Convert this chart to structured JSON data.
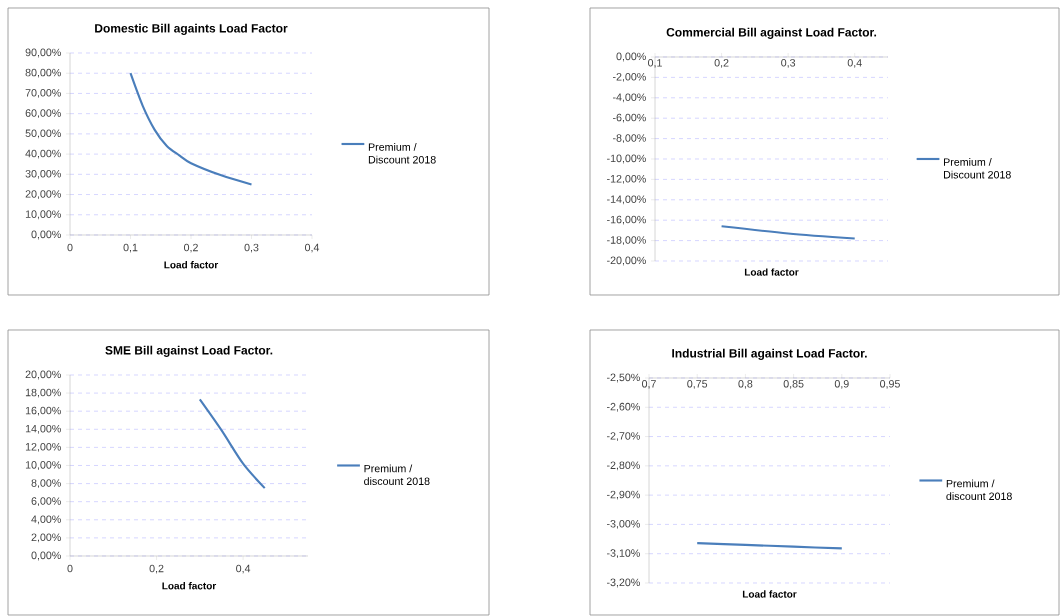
{
  "chart_data": [
    {
      "type": "line",
      "title": "Domestic Bill againts Load Factor",
      "xlabel": "Load factor",
      "grid": "y",
      "legend": "right",
      "marker": "none",
      "line_style": "solid",
      "xlim": [
        0,
        0.4
      ],
      "xticks": [
        0,
        {
          "value": 0.1,
          "label": "0,1"
        },
        {
          "value": 0.2,
          "label": "0,2"
        },
        {
          "value": 0.3,
          "label": "0,3"
        },
        {
          "value": 0.4,
          "label": "0,4"
        }
      ],
      "ylim": [
        0,
        90
      ],
      "yticks": [
        {
          "value": 0,
          "label": "0,00%"
        },
        {
          "value": 10,
          "label": "10,00%"
        },
        {
          "value": 20,
          "label": "20,00%"
        },
        {
          "value": 30,
          "label": "30,00%"
        },
        {
          "value": 40,
          "label": "40,00%"
        },
        {
          "value": 50,
          "label": "50,00%"
        },
        {
          "value": 60,
          "label": "60,00%"
        },
        {
          "value": 70,
          "label": "70,00%"
        },
        {
          "value": 80,
          "label": "80,00%"
        },
        {
          "value": 90,
          "label": "90,00%"
        }
      ],
      "x": [
        0.1,
        0.12,
        0.14,
        0.16,
        0.18,
        0.2,
        0.25,
        0.3
      ],
      "series": [
        {
          "name": "Premium / Discount 2018",
          "color": "#4a7ebb",
          "values": [
            80,
            64,
            52,
            44,
            39.5,
            35.5,
            29.5,
            25
          ]
        }
      ]
    },
    {
      "type": "line",
      "title": "Commercial Bill against Load Factor.",
      "xlabel": "Load factor",
      "grid": "y",
      "legend": "right",
      "marker": "none",
      "line_style": "solid",
      "xlim": [
        0.1,
        0.45
      ],
      "xticks": [
        {
          "value": 0.1,
          "label": "0,1"
        },
        {
          "value": 0.2,
          "label": "0,2"
        },
        {
          "value": 0.3,
          "label": "0,3"
        },
        {
          "value": 0.4,
          "label": "0,4"
        }
      ],
      "ylim": [
        -20,
        0
      ],
      "yticks": [
        {
          "value": 0,
          "label": "0,00%"
        },
        {
          "value": -2,
          "label": "-2,00%"
        },
        {
          "value": -4,
          "label": "-4,00%"
        },
        {
          "value": -6,
          "label": "-6,00%"
        },
        {
          "value": -8,
          "label": "-8,00%"
        },
        {
          "value": -10,
          "label": "-10,00%"
        },
        {
          "value": -12,
          "label": "-12,00%"
        },
        {
          "value": -14,
          "label": "-14,00%"
        },
        {
          "value": -16,
          "label": "-16,00%"
        },
        {
          "value": -18,
          "label": "-18,00%"
        },
        {
          "value": -20,
          "label": "-20,00%"
        }
      ],
      "x": [
        0.2,
        0.3,
        0.4
      ],
      "series": [
        {
          "name": "Premium / Discount 2018",
          "color": "#4a7ebb",
          "values": [
            -16.6,
            -17.3,
            -17.8
          ]
        }
      ]
    },
    {
      "type": "line",
      "title": "SME Bill against Load Factor.",
      "xlabel": "Load factor",
      "grid": "y",
      "legend": "right",
      "marker": "none",
      "line_style": "solid",
      "xlim": [
        0,
        0.55
      ],
      "xticks": [
        0,
        {
          "value": 0.2,
          "label": "0,2"
        },
        {
          "value": 0.4,
          "label": "0,4"
        }
      ],
      "ylim": [
        0,
        20
      ],
      "yticks": [
        {
          "value": 0,
          "label": "0,00%"
        },
        {
          "value": 2,
          "label": "2,00%"
        },
        {
          "value": 4,
          "label": "4,00%"
        },
        {
          "value": 6,
          "label": "6,00%"
        },
        {
          "value": 8,
          "label": "8,00%"
        },
        {
          "value": 10,
          "label": "10,00%"
        },
        {
          "value": 12,
          "label": "12,00%"
        },
        {
          "value": 14,
          "label": "14,00%"
        },
        {
          "value": 16,
          "label": "16,00%"
        },
        {
          "value": 18,
          "label": "18,00%"
        },
        {
          "value": 20,
          "label": "20,00%"
        }
      ],
      "x": [
        0.3,
        0.35,
        0.4,
        0.45
      ],
      "series": [
        {
          "name": "Premium / discount 2018",
          "color": "#4a7ebb",
          "values": [
            17.3,
            13.9,
            10.2,
            7.5
          ]
        }
      ]
    },
    {
      "type": "line",
      "title": "Industrial Bill against Load Factor.",
      "xlabel": "Load factor",
      "grid": "y",
      "legend": "right",
      "marker": "none",
      "line_style": "solid",
      "xlim": [
        0.7,
        0.95
      ],
      "xticks": [
        {
          "value": 0.7,
          "label": "0,7"
        },
        {
          "value": 0.75,
          "label": "0,75"
        },
        {
          "value": 0.8,
          "label": "0,8"
        },
        {
          "value": 0.85,
          "label": "0,85"
        },
        {
          "value": 0.9,
          "label": "0,9"
        },
        {
          "value": 0.95,
          "label": "0,95"
        }
      ],
      "ylim": [
        -3.2,
        -2.5
      ],
      "yticks": [
        {
          "value": -2.5,
          "label": "-2,50%"
        },
        {
          "value": -2.6,
          "label": "-2,60%"
        },
        {
          "value": -2.7,
          "label": "-2,70%"
        },
        {
          "value": -2.8,
          "label": "-2,80%"
        },
        {
          "value": -2.9,
          "label": "-2,90%"
        },
        {
          "value": -3.0,
          "label": "-3,00%"
        },
        {
          "value": -3.1,
          "label": "-3,10%"
        },
        {
          "value": -3.2,
          "label": "-3,20%"
        }
      ],
      "x": [
        0.75,
        0.8,
        0.85,
        0.9
      ],
      "series": [
        {
          "name": "Premium / discount 2018",
          "color": "#4a7ebb",
          "values": [
            -3.064,
            -3.07,
            -3.076,
            -3.082
          ]
        }
      ]
    }
  ]
}
